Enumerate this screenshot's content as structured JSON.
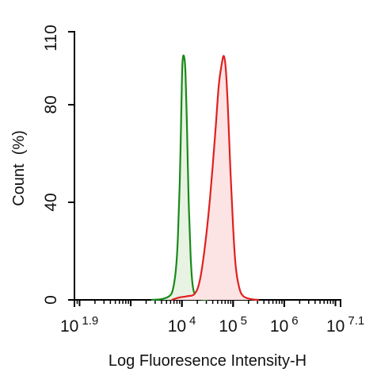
{
  "chart_data": {
    "type": "area",
    "xlabel": "Log Fluoresence Intensity-H",
    "ylabel": "Count  (%)",
    "x_scale": "log10",
    "xlim_log10": [
      1.9,
      7.1
    ],
    "ylim": [
      0,
      110
    ],
    "grid": false,
    "legend": "none",
    "x_ticks": [
      {
        "base": "10",
        "exp": "1.9",
        "log": 1.9
      },
      {
        "base": "10",
        "exp": "4",
        "log": 4
      },
      {
        "base": "10",
        "exp": "5",
        "log": 5
      },
      {
        "base": "10",
        "exp": "6",
        "log": 6
      },
      {
        "base": "10",
        "exp": "7.1",
        "log": 7.1
      }
    ],
    "y_ticks": [
      {
        "label": "0",
        "value": 0
      },
      {
        "label": "40",
        "value": 40
      },
      {
        "label": "80",
        "value": 80
      },
      {
        "label": "110",
        "value": 110
      }
    ],
    "series": [
      {
        "color": "#1a8a1a",
        "fill": "#e8f3e4",
        "points_log10_x_y": [
          [
            3.4,
            0
          ],
          [
            3.6,
            0.3
          ],
          [
            3.75,
            1.5
          ],
          [
            3.82,
            4
          ],
          [
            3.88,
            12
          ],
          [
            3.92,
            25
          ],
          [
            3.96,
            50
          ],
          [
            3.99,
            80
          ],
          [
            4.01,
            97
          ],
          [
            4.04,
            100
          ],
          [
            4.07,
            93
          ],
          [
            4.1,
            70
          ],
          [
            4.13,
            42
          ],
          [
            4.17,
            18
          ],
          [
            4.21,
            6
          ],
          [
            4.27,
            1.5
          ],
          [
            4.35,
            0.4
          ],
          [
            4.5,
            0
          ]
        ]
      },
      {
        "color": "#e02020",
        "fill": "#fde4e4",
        "points_log10_x_y": [
          [
            3.8,
            0
          ],
          [
            3.95,
            1
          ],
          [
            4.1,
            1.5
          ],
          [
            4.25,
            2.5
          ],
          [
            4.35,
            8
          ],
          [
            4.45,
            22
          ],
          [
            4.55,
            42
          ],
          [
            4.65,
            68
          ],
          [
            4.72,
            88
          ],
          [
            4.78,
            97
          ],
          [
            4.82,
            100
          ],
          [
            4.86,
            94
          ],
          [
            4.9,
            78
          ],
          [
            4.95,
            52
          ],
          [
            5.0,
            30
          ],
          [
            5.05,
            14
          ],
          [
            5.12,
            5
          ],
          [
            5.2,
            1.5
          ],
          [
            5.35,
            0.3
          ],
          [
            5.5,
            0
          ]
        ]
      }
    ]
  }
}
